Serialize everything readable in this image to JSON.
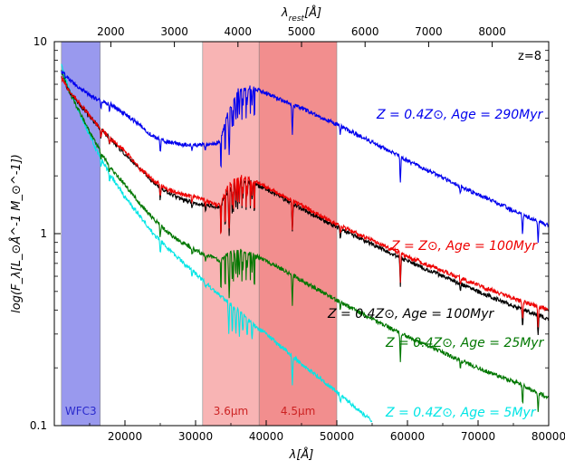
{
  "chart_data": {
    "type": "line",
    "x_axis": {
      "label": "λ[Å]",
      "range": [
        10000,
        80000
      ],
      "ticks": [
        20000,
        30000,
        40000,
        50000,
        60000,
        70000,
        80000
      ],
      "tick_labels": [
        "20000",
        "30000",
        "40000",
        "50000",
        "60000",
        "70000",
        "80000"
      ]
    },
    "top_axis": {
      "label": "λ_rest[Å]",
      "label_main": "λ",
      "label_sub": "rest",
      "label_tail": "[Å]",
      "ticks": [
        2000,
        3000,
        4000,
        5000,
        6000,
        7000,
        8000
      ],
      "tick_labels": [
        "2000",
        "3000",
        "4000",
        "5000",
        "6000",
        "7000",
        "8000"
      ],
      "redshift_factor": 9
    },
    "y_axis": {
      "label": "log(F_λ[L_⊙Å^-1 M_⊙^-1])",
      "scale": "log",
      "range": [
        0.1,
        10
      ],
      "ticks": [
        0.1,
        1,
        10
      ],
      "tick_labels": [
        "0.1",
        "1",
        "10"
      ]
    },
    "redshift_tag": "z=8",
    "bands": [
      {
        "label": "WFC3",
        "x_range": [
          11000,
          16500
        ],
        "color": "#9999ee",
        "label_color": "#2a2acc"
      },
      {
        "label": "3.6μm",
        "x_range": [
          31000,
          39000
        ],
        "color": "#f8b4b4",
        "label_color": "#cc2222"
      },
      {
        "label": "4.5μm",
        "x_range": [
          39000,
          50000
        ],
        "color": "#f28e8e",
        "label_color": "#cc2222"
      }
    ],
    "series": [
      {
        "name": "Z = 0.4Z⊙, Age = 290Myr",
        "color": "#0000ee",
        "x": [
          11000,
          12000,
          14000,
          16000,
          18000,
          20000,
          22000,
          24000,
          26000,
          28000,
          30000,
          32000,
          33500,
          34500,
          36000,
          38000,
          40000,
          42000,
          45000,
          50000,
          55000,
          60000,
          65000,
          70000,
          75000,
          80000
        ],
        "y": [
          7.0,
          6.4,
          5.6,
          5.0,
          4.7,
          4.2,
          3.7,
          3.2,
          3.0,
          2.9,
          2.9,
          2.9,
          3.0,
          4.2,
          5.6,
          5.8,
          5.4,
          5.0,
          4.5,
          3.7,
          3.0,
          2.4,
          1.95,
          1.6,
          1.32,
          1.1
        ]
      },
      {
        "name": "Z = Z⊙, Age = 100Myr",
        "color": "#ee0000",
        "x": [
          11000,
          12000,
          14000,
          16000,
          18000,
          20000,
          22000,
          24000,
          26000,
          28000,
          30000,
          32000,
          33500,
          34500,
          36000,
          38000,
          40000,
          42000,
          45000,
          50000,
          55000,
          60000,
          65000,
          70000,
          75000,
          80000
        ],
        "y": [
          6.5,
          5.6,
          4.6,
          3.7,
          3.1,
          2.7,
          2.2,
          1.9,
          1.7,
          1.6,
          1.55,
          1.45,
          1.4,
          1.75,
          2.0,
          1.9,
          1.75,
          1.6,
          1.4,
          1.12,
          0.92,
          0.76,
          0.64,
          0.54,
          0.46,
          0.4
        ]
      },
      {
        "name": "Z = 0.4Z⊙, Age = 100Myr",
        "color": "#000000",
        "x": [
          11000,
          12000,
          14000,
          16000,
          18000,
          20000,
          22000,
          24000,
          26000,
          28000,
          30000,
          32000,
          33500,
          34500,
          36000,
          38000,
          40000,
          42000,
          45000,
          50000,
          55000,
          60000,
          65000,
          70000,
          75000,
          80000
        ],
        "y": [
          6.5,
          5.6,
          4.5,
          3.7,
          3.1,
          2.6,
          2.2,
          1.85,
          1.65,
          1.5,
          1.45,
          1.4,
          1.38,
          1.65,
          1.9,
          1.85,
          1.7,
          1.55,
          1.35,
          1.08,
          0.88,
          0.72,
          0.6,
          0.5,
          0.42,
          0.36
        ]
      },
      {
        "name": "Z = 0.4Z⊙, Age = 25Myr",
        "color": "#007700",
        "x": [
          11000,
          12000,
          14000,
          16000,
          18000,
          20000,
          22000,
          24000,
          26000,
          28000,
          30000,
          32000,
          33500,
          34500,
          36000,
          38000,
          40000,
          42000,
          45000,
          50000,
          55000,
          60000,
          65000,
          70000,
          75000,
          80000
        ],
        "y": [
          7.0,
          5.6,
          4.0,
          2.9,
          2.2,
          1.8,
          1.45,
          1.2,
          1.02,
          0.9,
          0.82,
          0.76,
          0.72,
          0.78,
          0.82,
          0.78,
          0.72,
          0.66,
          0.57,
          0.45,
          0.36,
          0.29,
          0.24,
          0.2,
          0.17,
          0.14
        ]
      },
      {
        "name": "Z = 0.4Z⊙, Age = 5Myr",
        "color": "#00e5e5",
        "x": [
          11000,
          12000,
          14000,
          16000,
          18000,
          20000,
          22000,
          24000,
          26000,
          28000,
          30000,
          32000,
          34000,
          36000,
          38000,
          40000,
          42000,
          45000,
          50000,
          55000
        ],
        "y": [
          7.5,
          5.8,
          3.9,
          2.7,
          2.0,
          1.55,
          1.25,
          1.0,
          0.84,
          0.72,
          0.62,
          0.53,
          0.46,
          0.4,
          0.34,
          0.3,
          0.26,
          0.21,
          0.15,
          0.105
        ]
      }
    ]
  }
}
